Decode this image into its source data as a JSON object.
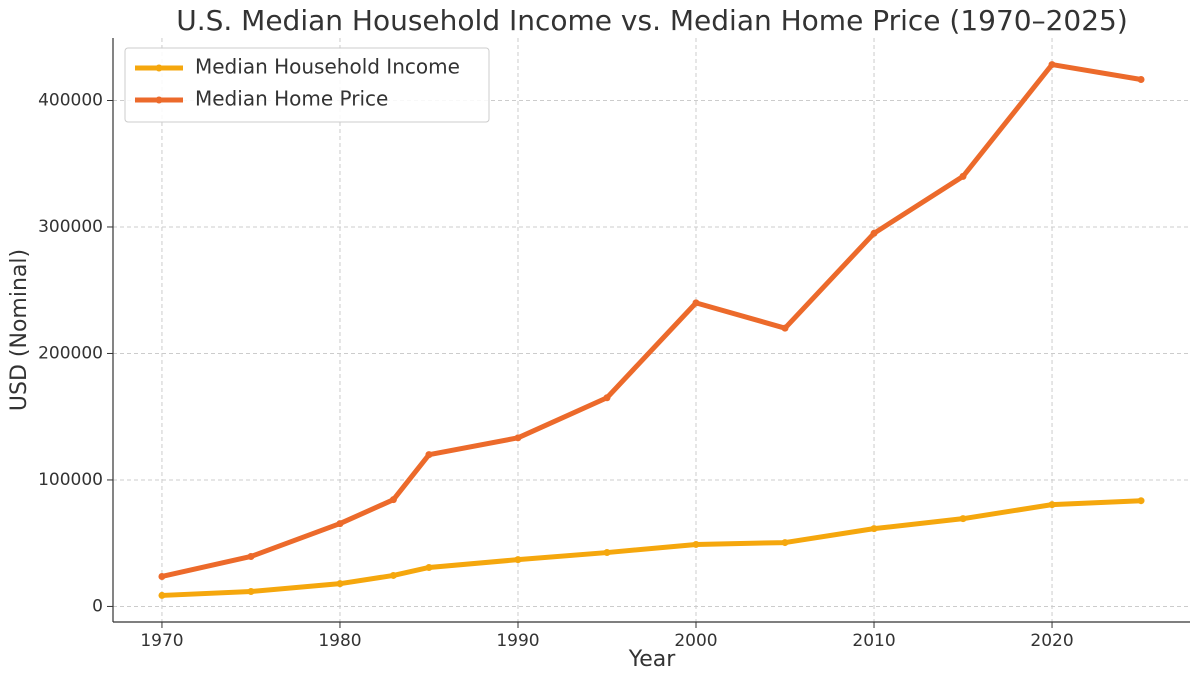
{
  "chart_data": {
    "type": "line",
    "title": "U.S. Median Household Income vs. Median Home Price (1970–2025)",
    "x_label": "Year",
    "y_label": "USD (Nominal)",
    "x": [
      1970,
      1975,
      1980,
      1983,
      1985,
      1990,
      1995,
      2000,
      2005,
      2010,
      2015,
      2020,
      2025
    ],
    "series": [
      {
        "name": "Median Household Income",
        "color": "#f5a70d",
        "values": [
          8700,
          11800,
          18000,
          24500,
          30800,
          37000,
          42600,
          49000,
          50500,
          61500,
          69400,
          80500,
          83600
        ]
      },
      {
        "name": "Median Home Price",
        "color": "#ec6a2b",
        "values": [
          23700,
          39500,
          65500,
          84400,
          120000,
          133300,
          165000,
          240000,
          220000,
          295000,
          340000,
          428400,
          416600
        ]
      }
    ],
    "xlim": [
      1967.25,
      2027.75
    ],
    "xticks": [
      1970,
      1980,
      1990,
      2000,
      2010,
      2020
    ],
    "ylim": [
      -12300,
      449400
    ],
    "yticks": [
      0,
      100000,
      200000,
      300000,
      400000
    ],
    "grid": true,
    "legend": "upper-left"
  }
}
